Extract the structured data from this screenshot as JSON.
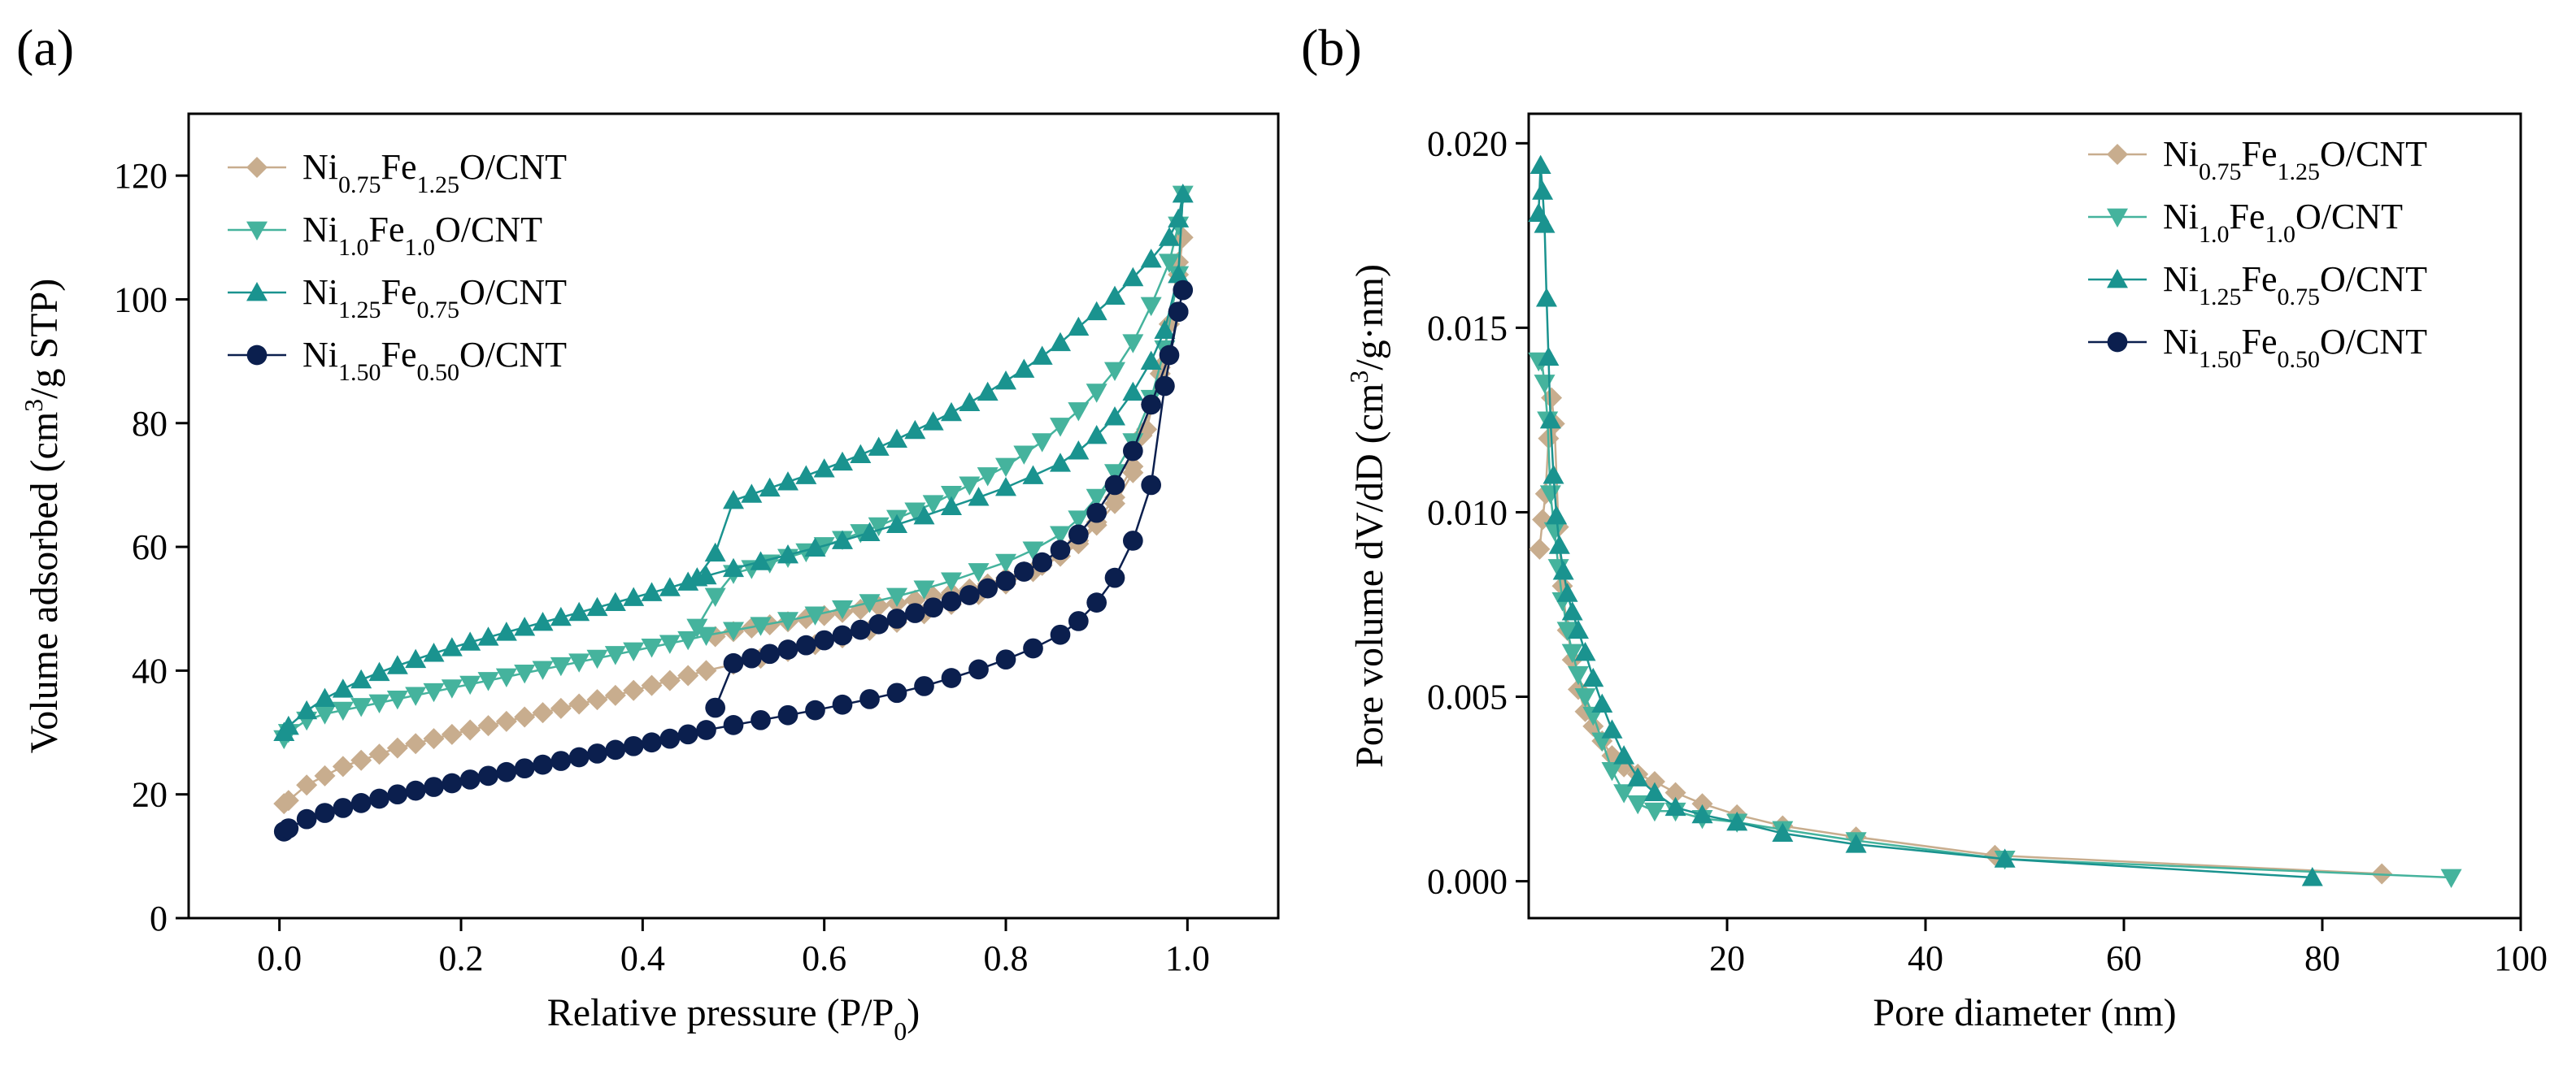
{
  "panels": [
    {
      "label": "(a)"
    },
    {
      "label": "(b)"
    }
  ],
  "colors": {
    "ni075": "#c8ad8e",
    "ni100": "#45b39d",
    "ni125": "#1a938f",
    "ni150": "#0b1f4e"
  },
  "legend_parts": [
    [
      [
        "Ni",
        false
      ],
      [
        "0.75",
        true
      ],
      [
        "Fe",
        false
      ],
      [
        "1.25",
        true
      ],
      [
        "O/CNT",
        false
      ]
    ],
    [
      [
        "Ni",
        false
      ],
      [
        "1.0",
        true
      ],
      [
        "Fe",
        false
      ],
      [
        "1.0",
        true
      ],
      [
        "O/CNT",
        false
      ]
    ],
    [
      [
        "Ni",
        false
      ],
      [
        "1.25",
        true
      ],
      [
        "Fe",
        false
      ],
      [
        "0.75",
        true
      ],
      [
        "O/CNT",
        false
      ]
    ],
    [
      [
        "Ni",
        false
      ],
      [
        "1.50",
        true
      ],
      [
        "Fe",
        false
      ],
      [
        "0.50",
        true
      ],
      [
        "O/CNT",
        false
      ]
    ]
  ],
  "chart_data": [
    {
      "type": "scatter",
      "title": "",
      "xlabel_parts": [
        [
          "Relative pressure (P/P",
          false
        ],
        [
          "0",
          true
        ],
        [
          ")",
          false
        ]
      ],
      "ylabel_parts": [
        [
          "Volume adsorbed (cm",
          false
        ],
        [
          "3",
          "sup"
        ],
        [
          "/g STP)",
          false
        ]
      ],
      "xlim": [
        -0.1,
        1.1
      ],
      "ylim": [
        0,
        130
      ],
      "xticks": [
        "0.0",
        "0.2",
        "0.4",
        "0.6",
        "0.8",
        "1.0"
      ],
      "xtick_values": [
        0,
        0.2,
        0.4,
        0.6,
        0.8,
        1.0
      ],
      "yticks": [
        "0",
        "20",
        "40",
        "60",
        "80",
        "100",
        "120"
      ],
      "ytick_values": [
        0,
        20,
        40,
        60,
        80,
        100,
        120
      ],
      "legend_position": "top-left",
      "series": [
        {
          "name": "Ni0.75Fe1.25O/CNT",
          "marker": "diamond",
          "x": [
            0.005,
            0.01,
            0.03,
            0.05,
            0.07,
            0.09,
            0.11,
            0.13,
            0.15,
            0.17,
            0.19,
            0.21,
            0.23,
            0.25,
            0.27,
            0.29,
            0.31,
            0.33,
            0.35,
            0.37,
            0.39,
            0.41,
            0.43,
            0.45,
            0.47,
            0.5,
            0.53,
            0.56,
            0.59,
            0.62,
            0.65,
            0.68,
            0.71,
            0.74,
            0.77,
            0.8,
            0.83,
            0.86,
            0.88,
            0.9,
            0.92,
            0.94,
            0.955,
            0.97,
            0.98,
            0.99,
            0.995,
            0.99,
            0.98,
            0.97,
            0.96,
            0.95,
            0.94,
            0.92,
            0.9,
            0.88,
            0.86,
            0.84,
            0.82,
            0.8,
            0.78,
            0.76,
            0.74,
            0.72,
            0.7,
            0.68,
            0.66,
            0.64,
            0.62,
            0.6,
            0.58,
            0.56,
            0.54,
            0.52,
            0.5,
            0.48
          ],
          "y": [
            18.5,
            19,
            21.5,
            23,
            24.5,
            25.5,
            26.5,
            27.5,
            28.2,
            29,
            29.7,
            30.4,
            31.1,
            31.8,
            32.5,
            33.2,
            33.9,
            34.6,
            35.3,
            36,
            36.8,
            37.6,
            38.4,
            39.2,
            40,
            41,
            42,
            43.1,
            44.2,
            45.3,
            46.5,
            47.8,
            49.2,
            50.7,
            52.3,
            54,
            56,
            58.5,
            61,
            64,
            68,
            73,
            79,
            88,
            96,
            106,
            110,
            104,
            96,
            89,
            83,
            78,
            72,
            67,
            63.5,
            60.5,
            58.5,
            57,
            56,
            55,
            54,
            53.2,
            52.6,
            52,
            51.4,
            50.9,
            50.4,
            49.9,
            49.4,
            48.9,
            48.4,
            47.9,
            47.4,
            46.9,
            46.3,
            45.5
          ]
        },
        {
          "name": "Ni1.0Fe1.0O/CNT",
          "marker": "triangle-down",
          "x": [
            0.005,
            0.01,
            0.03,
            0.05,
            0.07,
            0.09,
            0.11,
            0.13,
            0.15,
            0.17,
            0.19,
            0.21,
            0.23,
            0.25,
            0.27,
            0.29,
            0.31,
            0.33,
            0.35,
            0.37,
            0.39,
            0.41,
            0.43,
            0.45,
            0.47,
            0.5,
            0.53,
            0.56,
            0.59,
            0.62,
            0.65,
            0.68,
            0.71,
            0.74,
            0.77,
            0.8,
            0.83,
            0.86,
            0.88,
            0.9,
            0.92,
            0.94,
            0.96,
            0.975,
            0.99,
            0.995,
            0.99,
            0.98,
            0.96,
            0.94,
            0.92,
            0.9,
            0.88,
            0.86,
            0.84,
            0.82,
            0.8,
            0.78,
            0.76,
            0.74,
            0.72,
            0.7,
            0.68,
            0.66,
            0.64,
            0.62,
            0.6,
            0.58,
            0.56,
            0.54,
            0.52,
            0.5,
            0.48,
            0.46
          ],
          "y": [
            29,
            30,
            32,
            33,
            33.6,
            34.2,
            34.8,
            35.4,
            36,
            36.6,
            37.2,
            37.8,
            38.4,
            39,
            39.6,
            40.2,
            40.8,
            41.4,
            42,
            42.6,
            43.2,
            43.8,
            44.4,
            45,
            45.7,
            46.5,
            47.3,
            48.1,
            49,
            50,
            51,
            52,
            53.2,
            54.5,
            56,
            57.5,
            59.5,
            62,
            64.5,
            68,
            72,
            77,
            84,
            92,
            104,
            117,
            112,
            106,
            99,
            93,
            88.5,
            85,
            82,
            79.5,
            77,
            75,
            73,
            71.5,
            70,
            68.5,
            67,
            65.8,
            64.6,
            63.4,
            62.3,
            61.2,
            60.2,
            59.2,
            58.3,
            57.4,
            56.5,
            55.7,
            52,
            47
          ]
        },
        {
          "name": "Ni1.25Fe0.75O/CNT",
          "marker": "triangle-up",
          "x": [
            0.005,
            0.01,
            0.03,
            0.05,
            0.07,
            0.09,
            0.11,
            0.13,
            0.15,
            0.17,
            0.19,
            0.21,
            0.23,
            0.25,
            0.27,
            0.29,
            0.31,
            0.33,
            0.35,
            0.37,
            0.39,
            0.41,
            0.43,
            0.45,
            0.47,
            0.5,
            0.53,
            0.56,
            0.59,
            0.62,
            0.65,
            0.68,
            0.71,
            0.74,
            0.77,
            0.8,
            0.83,
            0.86,
            0.88,
            0.9,
            0.92,
            0.94,
            0.96,
            0.975,
            0.99,
            0.995,
            0.99,
            0.98,
            0.96,
            0.94,
            0.92,
            0.9,
            0.88,
            0.86,
            0.84,
            0.82,
            0.8,
            0.78,
            0.76,
            0.74,
            0.72,
            0.7,
            0.68,
            0.66,
            0.64,
            0.62,
            0.6,
            0.58,
            0.56,
            0.54,
            0.52,
            0.5,
            0.48,
            0.46
          ],
          "y": [
            30,
            31,
            33.5,
            35.5,
            37,
            38.5,
            39.7,
            40.8,
            41.8,
            42.8,
            43.7,
            44.6,
            45.4,
            46.2,
            47,
            47.8,
            48.6,
            49.4,
            50.2,
            51,
            51.8,
            52.6,
            53.4,
            54.3,
            55.3,
            56.5,
            57.6,
            58.7,
            59.8,
            61,
            62.3,
            63.6,
            65,
            66.5,
            68,
            69.6,
            71.5,
            73.5,
            75.5,
            78,
            81,
            85,
            90,
            95,
            104,
            117,
            113,
            110,
            106.5,
            103.5,
            100.5,
            98,
            95.5,
            93,
            90.8,
            88.7,
            86.8,
            85,
            83.3,
            81.7,
            80.2,
            78.8,
            77.4,
            76.1,
            74.9,
            73.7,
            72.6,
            71.5,
            70.5,
            69.5,
            68.5,
            67.5,
            59,
            55
          ]
        },
        {
          "name": "Ni1.50Fe0.50O/CNT",
          "marker": "circle",
          "x": [
            0.005,
            0.01,
            0.03,
            0.05,
            0.07,
            0.09,
            0.11,
            0.13,
            0.15,
            0.17,
            0.19,
            0.21,
            0.23,
            0.25,
            0.27,
            0.29,
            0.31,
            0.33,
            0.35,
            0.37,
            0.39,
            0.41,
            0.43,
            0.45,
            0.47,
            0.5,
            0.53,
            0.56,
            0.59,
            0.62,
            0.65,
            0.68,
            0.71,
            0.74,
            0.77,
            0.8,
            0.83,
            0.86,
            0.88,
            0.9,
            0.92,
            0.94,
            0.96,
            0.975,
            0.99,
            0.995,
            0.99,
            0.98,
            0.96,
            0.94,
            0.92,
            0.9,
            0.88,
            0.86,
            0.84,
            0.82,
            0.8,
            0.78,
            0.76,
            0.74,
            0.72,
            0.7,
            0.68,
            0.66,
            0.64,
            0.62,
            0.6,
            0.58,
            0.56,
            0.54,
            0.52,
            0.5,
            0.48
          ],
          "y": [
            14,
            14.5,
            16,
            17,
            17.8,
            18.6,
            19.3,
            20,
            20.6,
            21.2,
            21.8,
            22.4,
            23,
            23.6,
            24.2,
            24.8,
            25.4,
            26,
            26.6,
            27.2,
            27.8,
            28.4,
            29,
            29.7,
            30.4,
            31.2,
            32,
            32.8,
            33.6,
            34.5,
            35.4,
            36.4,
            37.5,
            38.8,
            40.2,
            41.8,
            43.6,
            45.8,
            48,
            51,
            55,
            61,
            70,
            86,
            98,
            101.5,
            98,
            91,
            83,
            75.5,
            70,
            65.5,
            62,
            59.5,
            57.5,
            56,
            54.5,
            53.3,
            52.2,
            51.2,
            50.2,
            49.3,
            48.4,
            47.5,
            46.6,
            45.7,
            44.9,
            44.1,
            43.4,
            42.7,
            42,
            41.2,
            34
          ]
        }
      ]
    },
    {
      "type": "scatter",
      "title": "",
      "xlabel_parts": [
        [
          "Pore diameter (nm)",
          false
        ]
      ],
      "ylabel_parts": [
        [
          "Pore volume dV/dD (cm",
          false
        ],
        [
          "3",
          "sup"
        ],
        [
          "/g·nm)",
          false
        ]
      ],
      "xlim": [
        0,
        100
      ],
      "ylim": [
        -0.001,
        0.0208
      ],
      "xticks": [
        "20",
        "40",
        "60",
        "80",
        "100"
      ],
      "xtick_values": [
        20,
        40,
        60,
        80,
        100
      ],
      "yticks": [
        "0.000",
        "0.005",
        "0.010",
        "0.015",
        "0.020"
      ],
      "ytick_values": [
        0,
        0.005,
        0.01,
        0.015,
        0.02
      ],
      "legend_position": "top-right",
      "series": [
        {
          "name": "Ni0.75Fe1.25O/CNT",
          "marker": "diamond",
          "x": [
            1.1,
            1.4,
            1.7,
            2.0,
            2.3,
            2.6,
            3.0,
            3.4,
            3.9,
            4.4,
            5.0,
            5.7,
            6.5,
            7.4,
            8.4,
            9.6,
            11,
            12.7,
            14.8,
            17.5,
            21,
            25.6,
            33,
            47,
            86
          ],
          "y": [
            0.009,
            0.0098,
            0.0105,
            0.012,
            0.0131,
            0.0124,
            0.0096,
            0.008,
            0.0068,
            0.006,
            0.0052,
            0.0046,
            0.0042,
            0.0038,
            0.0034,
            0.0031,
            0.0029,
            0.0027,
            0.0024,
            0.0021,
            0.0018,
            0.0015,
            0.0012,
            0.0007,
            0.0002
          ]
        },
        {
          "name": "Ni1.0Fe1.0O/CNT",
          "marker": "triangle-down",
          "x": [
            1.0,
            1.3,
            1.6,
            1.9,
            2.2,
            2.6,
            3.0,
            3.4,
            3.9,
            4.4,
            5.0,
            5.7,
            6.5,
            7.4,
            8.4,
            9.6,
            11,
            12.7,
            14.8,
            17.5,
            21,
            25.6,
            33,
            48,
            93
          ],
          "y": [
            0.0141,
            0.0141,
            0.0135,
            0.0125,
            0.0105,
            0.0095,
            0.0085,
            0.0076,
            0.0068,
            0.0062,
            0.0056,
            0.005,
            0.0045,
            0.0038,
            0.003,
            0.0024,
            0.0021,
            0.0019,
            0.0019,
            0.0017,
            0.0016,
            0.0014,
            0.0011,
            0.0006,
            0.0001
          ]
        },
        {
          "name": "Ni1.25Fe0.75O/CNT",
          "marker": "triangle-up",
          "x": [
            1.0,
            1.2,
            1.4,
            1.6,
            1.8,
            2.0,
            2.2,
            2.5,
            2.8,
            3.1,
            3.5,
            3.9,
            4.4,
            5.0,
            5.7,
            6.5,
            7.4,
            8.4,
            9.6,
            11,
            12.7,
            14.8,
            17.5,
            21,
            25.6,
            33,
            48,
            79
          ],
          "y": [
            0.0181,
            0.0194,
            0.0187,
            0.0178,
            0.0158,
            0.0142,
            0.0125,
            0.011,
            0.0099,
            0.0091,
            0.0084,
            0.0078,
            0.0073,
            0.0068,
            0.0062,
            0.0055,
            0.0048,
            0.0041,
            0.0034,
            0.0028,
            0.0024,
            0.002,
            0.0018,
            0.0016,
            0.0013,
            0.001,
            0.0006,
            0.0001
          ]
        },
        {
          "name": "Ni1.50Fe0.50O/CNT",
          "marker": "circle",
          "x": [],
          "y": []
        }
      ]
    }
  ]
}
